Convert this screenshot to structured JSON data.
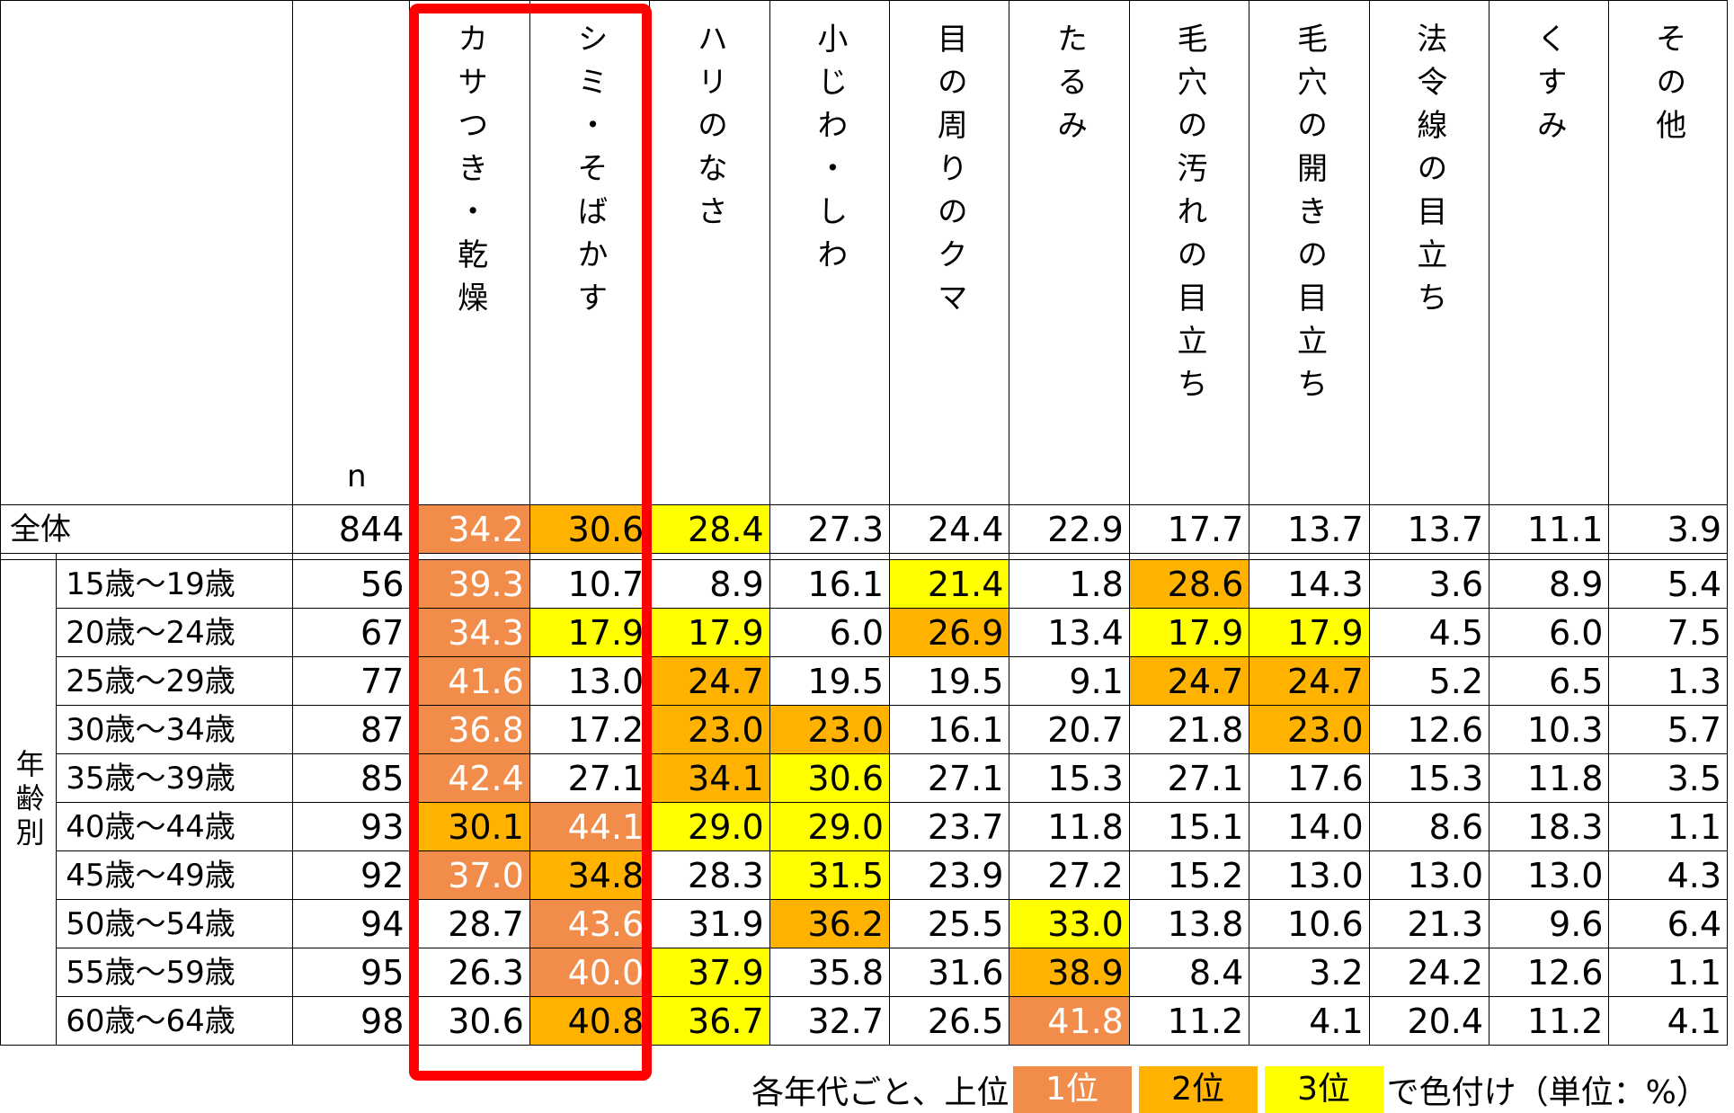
{
  "chart_data": {
    "type": "table",
    "unit": "%",
    "n_label": "n",
    "columns": [
      "カサつき・乾燥",
      "シミ・そばかす",
      "ハリのなさ",
      "小じわ・しわ",
      "目の周りのクマ",
      "たるみ",
      "毛穴の汚れの目立ち",
      "毛穴の開きの目立ち",
      "法令線の目立ち",
      "くすみ",
      "その他"
    ],
    "group_label": "年齢別",
    "total": {
      "label": "全体",
      "n": "844",
      "values": [
        "34.2",
        "30.6",
        "28.4",
        "27.3",
        "24.4",
        "22.9",
        "17.7",
        "13.7",
        "13.7",
        "11.1",
        "3.9"
      ],
      "ranks": [
        1,
        2,
        3,
        0,
        0,
        0,
        0,
        0,
        0,
        0,
        0
      ]
    },
    "rows": [
      {
        "label": "15歳～19歳",
        "n": "56",
        "values": [
          "39.3",
          "10.7",
          "8.9",
          "16.1",
          "21.4",
          "1.8",
          "28.6",
          "14.3",
          "3.6",
          "8.9",
          "5.4"
        ],
        "ranks": [
          1,
          0,
          0,
          0,
          3,
          0,
          2,
          0,
          0,
          0,
          0
        ]
      },
      {
        "label": "20歳～24歳",
        "n": "67",
        "values": [
          "34.3",
          "17.9",
          "17.9",
          "6.0",
          "26.9",
          "13.4",
          "17.9",
          "17.9",
          "4.5",
          "6.0",
          "7.5"
        ],
        "ranks": [
          1,
          3,
          3,
          0,
          2,
          0,
          3,
          3,
          0,
          0,
          0
        ]
      },
      {
        "label": "25歳～29歳",
        "n": "77",
        "values": [
          "41.6",
          "13.0",
          "24.7",
          "19.5",
          "19.5",
          "9.1",
          "24.7",
          "24.7",
          "5.2",
          "6.5",
          "1.3"
        ],
        "ranks": [
          1,
          0,
          2,
          0,
          0,
          0,
          2,
          2,
          0,
          0,
          0
        ]
      },
      {
        "label": "30歳～34歳",
        "n": "87",
        "values": [
          "36.8",
          "17.2",
          "23.0",
          "23.0",
          "16.1",
          "20.7",
          "21.8",
          "23.0",
          "12.6",
          "10.3",
          "5.7"
        ],
        "ranks": [
          1,
          0,
          2,
          2,
          0,
          0,
          0,
          2,
          0,
          0,
          0
        ]
      },
      {
        "label": "35歳～39歳",
        "n": "85",
        "values": [
          "42.4",
          "27.1",
          "34.1",
          "30.6",
          "27.1",
          "15.3",
          "27.1",
          "17.6",
          "15.3",
          "11.8",
          "3.5"
        ],
        "ranks": [
          1,
          0,
          2,
          3,
          0,
          0,
          0,
          0,
          0,
          0,
          0
        ]
      },
      {
        "label": "40歳～44歳",
        "n": "93",
        "values": [
          "30.1",
          "44.1",
          "29.0",
          "29.0",
          "23.7",
          "11.8",
          "15.1",
          "14.0",
          "8.6",
          "18.3",
          "1.1"
        ],
        "ranks": [
          2,
          1,
          3,
          3,
          0,
          0,
          0,
          0,
          0,
          0,
          0
        ]
      },
      {
        "label": "45歳～49歳",
        "n": "92",
        "values": [
          "37.0",
          "34.8",
          "28.3",
          "31.5",
          "23.9",
          "27.2",
          "15.2",
          "13.0",
          "13.0",
          "13.0",
          "4.3"
        ],
        "ranks": [
          1,
          2,
          0,
          3,
          0,
          0,
          0,
          0,
          0,
          0,
          0
        ]
      },
      {
        "label": "50歳～54歳",
        "n": "94",
        "values": [
          "28.7",
          "43.6",
          "31.9",
          "36.2",
          "25.5",
          "33.0",
          "13.8",
          "10.6",
          "21.3",
          "9.6",
          "6.4"
        ],
        "ranks": [
          0,
          1,
          0,
          2,
          0,
          3,
          0,
          0,
          0,
          0,
          0
        ]
      },
      {
        "label": "55歳～59歳",
        "n": "95",
        "values": [
          "26.3",
          "40.0",
          "37.9",
          "35.8",
          "31.6",
          "38.9",
          "8.4",
          "3.2",
          "24.2",
          "12.6",
          "1.1"
        ],
        "ranks": [
          0,
          1,
          3,
          0,
          0,
          2,
          0,
          0,
          0,
          0,
          0
        ]
      },
      {
        "label": "60歳～64歳",
        "n": "98",
        "values": [
          "30.6",
          "40.8",
          "36.7",
          "32.7",
          "26.5",
          "41.8",
          "11.2",
          "4.1",
          "20.4",
          "11.2",
          "4.1"
        ],
        "ranks": [
          0,
          2,
          3,
          0,
          0,
          1,
          0,
          0,
          0,
          0,
          0
        ]
      }
    ],
    "colors": {
      "rank1": "#f28c4a",
      "rank2": "#ffb300",
      "rank3": "#ffff00",
      "highlight": "#ff0000"
    },
    "legend": {
      "prefix": "各年代ごと、上位",
      "rank1": "1位",
      "rank2": "2位",
      "rank3": "3位",
      "suffix": "で色付け（単位：%）"
    }
  }
}
